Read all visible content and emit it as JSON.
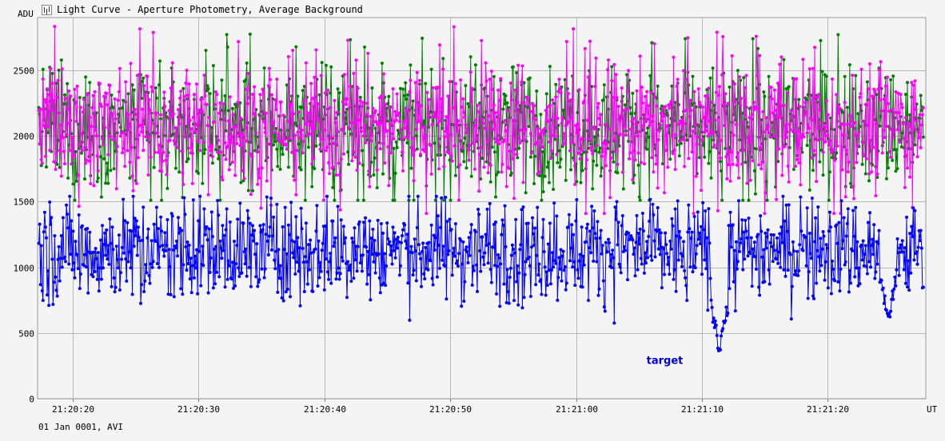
{
  "window": {
    "title": "Light Curve - Aperture Photometry, Average Background",
    "icon": "chart-icon"
  },
  "footer": {
    "date_source": "01 Jan 0001, AVI"
  },
  "chart_data": {
    "type": "line",
    "title": "Light Curve - Aperture Photometry, Average Background",
    "ylabel": "ADU",
    "xlabel": "UT",
    "ylim": [
      0,
      2900
    ],
    "yticks": [
      0,
      500,
      1000,
      1500,
      2000,
      2500
    ],
    "xlim": [
      "21:20:17.2",
      "21:21:27.8"
    ],
    "xticks": [
      "21:20:20",
      "21:20:30",
      "21:20:40",
      "21:20:50",
      "21:21:00",
      "21:21:10",
      "21:21:20"
    ],
    "grid": true,
    "annotations": [
      {
        "text": "target",
        "near_series": "target",
        "x": "21:21:05.6",
        "y": 265
      }
    ],
    "series": [
      {
        "name": "",
        "color": "#008000",
        "summary": {
          "mean": 2060,
          "typical_range": [
            1650,
            2500
          ],
          "max": 2780,
          "min": 1510
        }
      },
      {
        "name": "",
        "color": "#ff00ff",
        "summary": {
          "mean": 2080,
          "typical_range": [
            1700,
            2550
          ],
          "max": 2840,
          "min": 1410
        }
      },
      {
        "name": "target",
        "color": "#0000ff",
        "summary": {
          "mean": 1130,
          "typical_range": [
            800,
            1500
          ],
          "max": 1540,
          "min": 310
        },
        "events": [
          {
            "time": "21:21:11.4",
            "min_value": 310,
            "description": "sharp dip"
          },
          {
            "time": "21:21:24.8",
            "min_value": 540,
            "description": "minor dip"
          }
        ]
      }
    ]
  }
}
